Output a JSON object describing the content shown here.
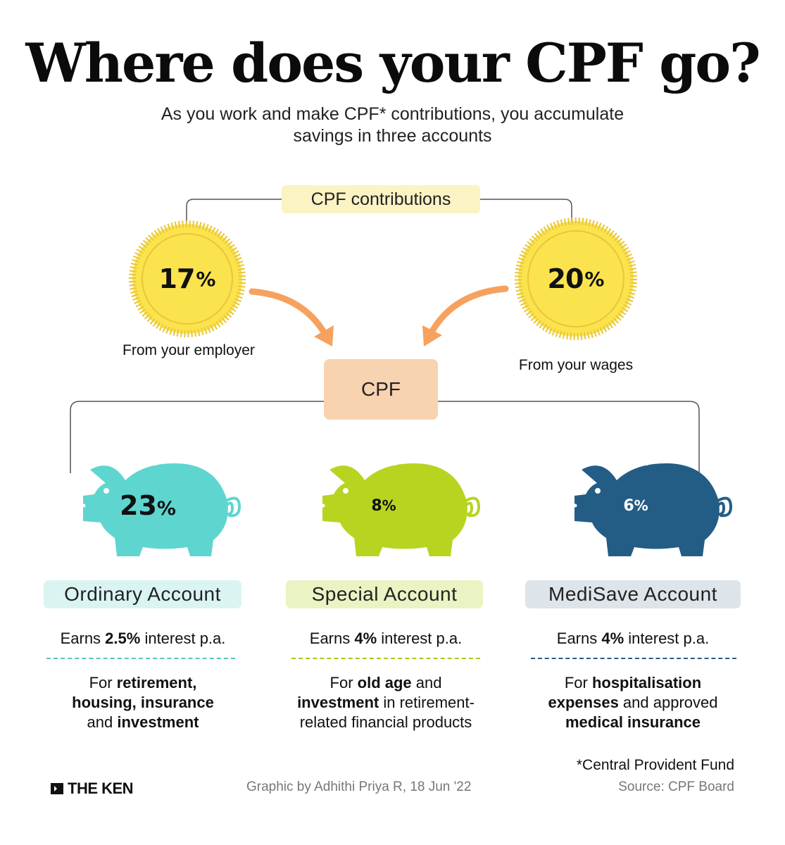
{
  "title": "Where does your CPF go?",
  "subtitle_line1": "As you work and make CPF* contributions, you accumulate",
  "subtitle_line2": "savings in three accounts",
  "contributions_label": "CPF contributions",
  "coins": [
    {
      "value": "17",
      "unit": "%",
      "caption": "From your employer"
    },
    {
      "value": "20",
      "unit": "%",
      "caption": "From your wages"
    }
  ],
  "cpf_label": "CPF",
  "accounts": [
    {
      "share": "23",
      "unit": "%",
      "name": "Ordinary Account",
      "earns_pre": "Earns ",
      "rate": "2.5%",
      "earns_post": " interest p.a.",
      "desc_1a": "For ",
      "desc_1b": "retirement,",
      "desc_2": "housing, insurance",
      "desc_3a": "and ",
      "desc_3b": "investment",
      "color": "#5fd5d0",
      "label_bg": "#daf4f2",
      "dash_color": "#57c6c3"
    },
    {
      "share": "8",
      "unit": "%",
      "name": "Special Account",
      "earns_pre": "Earns ",
      "rate": "4%",
      "earns_post": " interest p.a.",
      "desc_1a": "For ",
      "desc_1b": "old age",
      "desc_1c": " and",
      "desc_2a": "investment",
      "desc_2b": " in retirement-",
      "desc_3": "related financial products",
      "color": "#b8d421",
      "label_bg": "#eaf3c3",
      "dash_color": "#a9c91d"
    },
    {
      "share": "6",
      "unit": "%",
      "name": "MediSave Account",
      "earns_pre": "Earns ",
      "rate": "4%",
      "earns_post": " interest p.a.",
      "desc_1a": "For ",
      "desc_1b": "hospitalisation",
      "desc_2a": "expenses",
      "desc_2b": " and approved",
      "desc_3": "medical insurance",
      "color": "#235d86",
      "label_bg": "#dde4ea",
      "dash_color": "#2a5d85"
    }
  ],
  "footnote": "*Central Provident Fund",
  "credit": "Graphic by Adhithi Priya R, 18 Jun '22",
  "source": "Source: CPF Board",
  "logo_text": "THE KEN",
  "colors": {
    "coin_fill": "#fbe34e",
    "coin_edge": "#e8c63a",
    "arrow": "#f6a15d",
    "connector": "#555555"
  }
}
